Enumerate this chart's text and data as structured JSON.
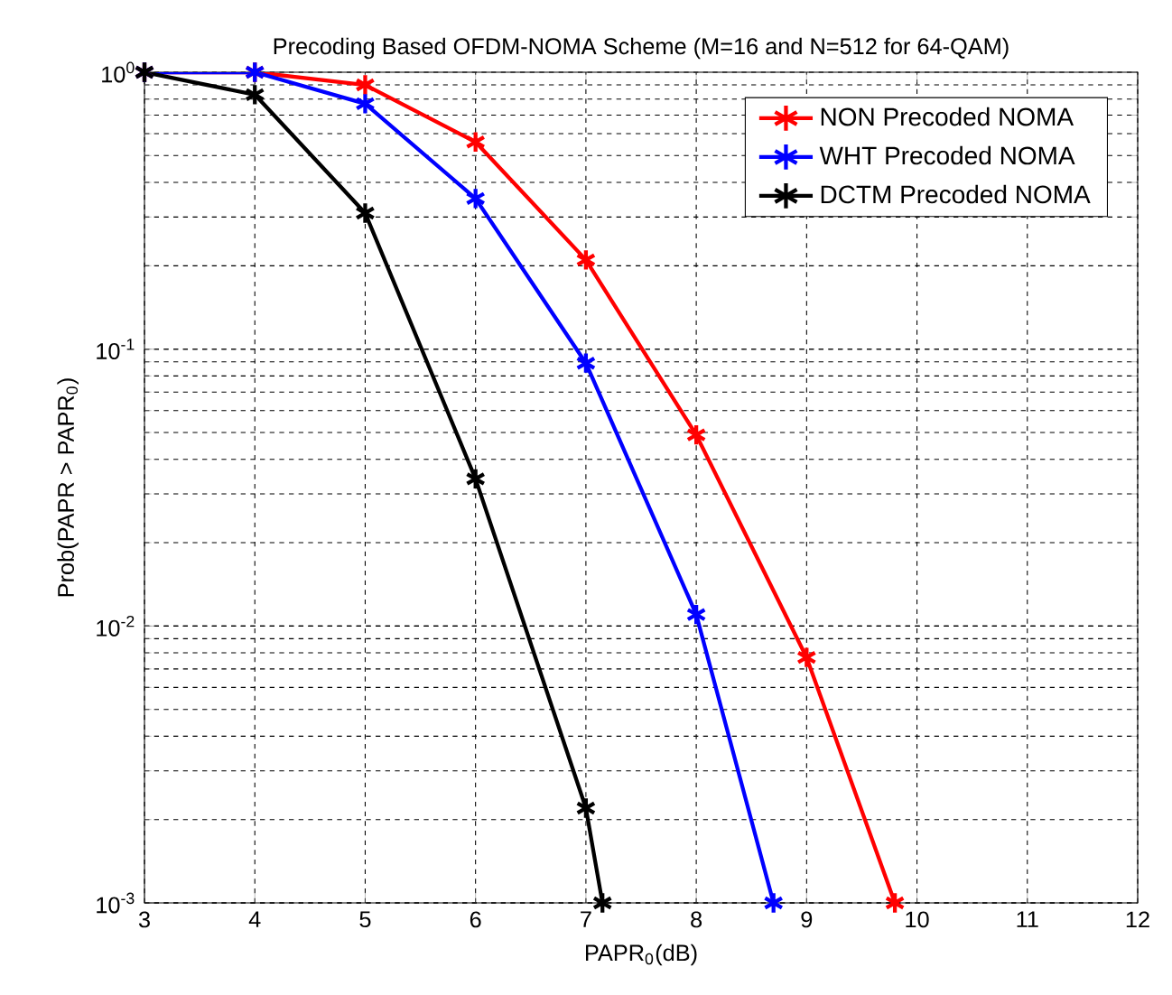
{
  "chart_data": {
    "type": "line",
    "title": "Precoding Based OFDM-NOMA Scheme (M=16 and N=512 for 64-QAM)",
    "xlabel": "PAPR$_{0}$(dB)",
    "ylabel": "Prob(PAPR > PAPR$_{0}$)",
    "log": "y",
    "grid": true,
    "legend": "top right",
    "marker": "cross",
    "line_style": "solid",
    "xlim": [
      3,
      12
    ],
    "xticks": [
      3,
      4,
      5,
      6,
      7,
      8,
      9,
      10,
      11,
      12
    ],
    "ylim": [
      0.001,
      1
    ],
    "yticks": [
      {
        "value": 0.001,
        "label": "10$^{-3}$"
      },
      {
        "value": 0.01,
        "label": "10$^{-2}$"
      },
      {
        "value": 0.1,
        "label": "10$^{-1}$"
      },
      {
        "value": 1,
        "label": "10$^{0}$"
      }
    ],
    "series": [
      {
        "name": "NON Precoded NOMA",
        "color": "#ff0000",
        "x": [
          3,
          4,
          5,
          6,
          7,
          8,
          9,
          9.8
        ],
        "values": [
          1,
          1,
          0.9,
          0.56,
          0.21,
          0.049,
          0.0077,
          0.001
        ]
      },
      {
        "name": "WHT Precoded NOMA",
        "color": "#0000ff",
        "x": [
          3,
          4,
          5,
          6,
          7,
          8,
          8.7
        ],
        "values": [
          1,
          1,
          0.77,
          0.35,
          0.089,
          0.011,
          0.001
        ]
      },
      {
        "name": "DCTM Precoded NOMA",
        "color": "#000000",
        "x": [
          3,
          4,
          5,
          6,
          7,
          7.15
        ],
        "values": [
          1,
          0.83,
          0.31,
          0.034,
          0.0022,
          0.001
        ]
      }
    ]
  }
}
